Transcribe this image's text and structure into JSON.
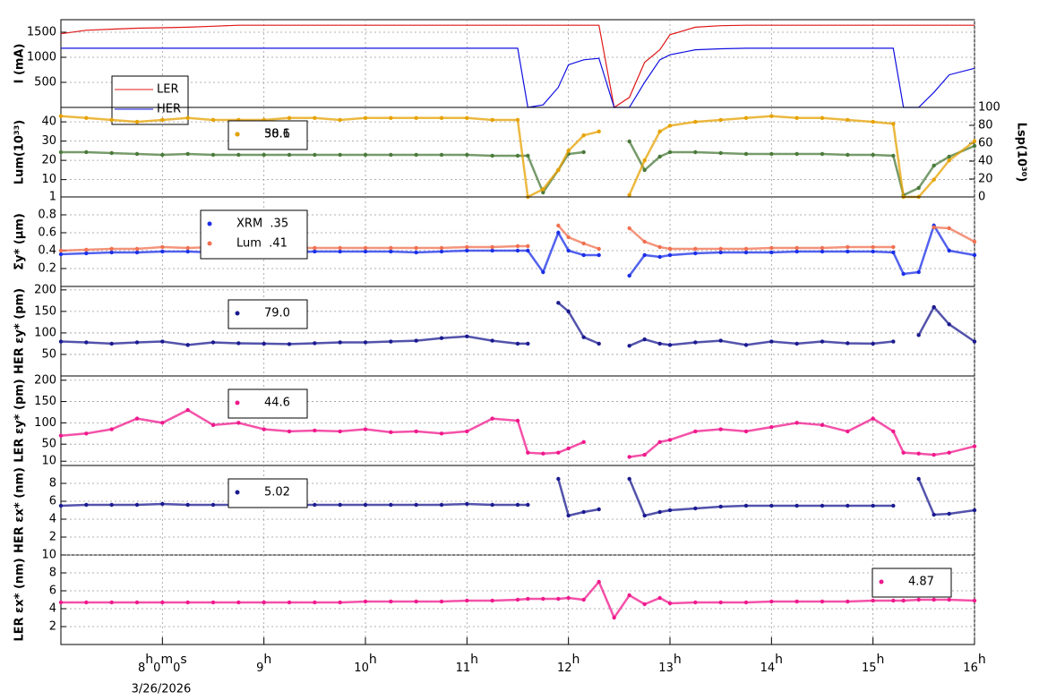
{
  "chart_data": [
    {
      "type": "line",
      "ylabel": "I (mA)",
      "ylim": [
        0,
        1750
      ],
      "yticks": [
        500,
        1000,
        1500
      ],
      "grid": true,
      "markers": false,
      "legend_loc": "lower left",
      "legend_stacked": true,
      "x": [
        7,
        7.25,
        7.5,
        7.75,
        8,
        8.25,
        8.5,
        8.75,
        9,
        9.25,
        9.5,
        9.75,
        10,
        10.25,
        10.5,
        10.75,
        11,
        11.25,
        11.5,
        11.6,
        11.75,
        11.9,
        12,
        12.15,
        12.3,
        12.45,
        12.6,
        12.75,
        12.9,
        13,
        13.25,
        13.5,
        13.75,
        14,
        14.25,
        14.5,
        14.75,
        15,
        15.2,
        15.3,
        15.45,
        15.6,
        15.75,
        16
      ],
      "series": [
        {
          "name": "LER",
          "color": "#e01818",
          "values": [
            1470,
            1540,
            1560,
            1580,
            1590,
            1600,
            1620,
            1640,
            1640,
            1640,
            1640,
            1640,
            1640,
            1640,
            1640,
            1640,
            1640,
            1640,
            1640,
            1640,
            1640,
            1640,
            1640,
            1640,
            1640,
            0,
            200,
            900,
            1150,
            1450,
            1600,
            1630,
            1640,
            1640,
            1640,
            1640,
            1640,
            1640,
            1640,
            1640,
            1640,
            1640,
            1640,
            1640
          ]
        },
        {
          "name": "HER",
          "color": "#1010e0",
          "values": [
            1180,
            1180,
            1180,
            1180,
            1180,
            1180,
            1180,
            1180,
            1180,
            1180,
            1180,
            1180,
            1180,
            1180,
            1180,
            1180,
            1180,
            1180,
            1180,
            0,
            50,
            400,
            850,
            950,
            980,
            0,
            0,
            500,
            950,
            1050,
            1150,
            1170,
            1180,
            1180,
            1180,
            1180,
            1180,
            1180,
            1180,
            0,
            0,
            300,
            650,
            780
          ]
        }
      ]
    },
    {
      "type": "line",
      "ylabel": "Lum(10³³)",
      "ylim": [
        1,
        47.5
      ],
      "yticks": [
        1,
        10,
        20,
        30,
        40
      ],
      "y2label": "Lsp(10³⁰)",
      "y2lim": [
        0,
        100
      ],
      "y2ticks": [
        0,
        20,
        40,
        60,
        80,
        100
      ],
      "grid": true,
      "markers": true,
      "legend_loc": "upper left",
      "legend_stacked": false,
      "x": [
        7,
        7.25,
        7.5,
        7.75,
        8,
        8.25,
        8.5,
        8.75,
        9,
        9.25,
        9.5,
        9.75,
        10,
        10.25,
        10.5,
        10.75,
        11,
        11.25,
        11.5,
        11.6,
        11.75,
        11.9,
        12,
        12.15,
        12.3,
        12.45,
        12.6,
        12.75,
        12.9,
        13,
        13.25,
        13.5,
        13.75,
        14,
        14.25,
        14.5,
        14.75,
        15,
        15.2,
        15.3,
        15.45,
        15.6,
        15.75,
        16
      ],
      "series": [
        {
          "name": "50.1",
          "color": "#4a7a3a",
          "axis": "y2",
          "values": [
            50,
            50,
            49,
            48,
            47,
            48,
            47,
            47,
            47,
            47,
            47,
            47,
            47,
            47,
            47,
            47,
            47,
            46,
            46,
            46,
            5,
            30,
            48,
            50,
            null,
            null,
            62,
            30,
            45,
            50,
            50,
            49,
            48,
            48,
            48,
            48,
            47,
            47,
            46,
            2,
            10,
            35,
            45,
            57
          ]
        },
        {
          "name": "38.6",
          "color": "#e6a200",
          "values": [
            43,
            42,
            41,
            40,
            41,
            42,
            41,
            41,
            41,
            42,
            42,
            41,
            42,
            42,
            42,
            42,
            42,
            41,
            41,
            1,
            5,
            15,
            25,
            33,
            35,
            null,
            2,
            20,
            35,
            38,
            40,
            41,
            42,
            43,
            42,
            42,
            41,
            40,
            39,
            1,
            1,
            10,
            20,
            30
          ]
        }
      ]
    },
    {
      "type": "line",
      "ylabel": "Σy* (μm)",
      "ylim": [
        0,
        1
      ],
      "yticks": [
        0.2,
        0.4,
        0.6,
        0.8
      ],
      "grid": true,
      "markers": true,
      "legend_loc": "upper left",
      "legend_stacked": true,
      "x": [
        7,
        7.25,
        7.5,
        7.75,
        8,
        8.25,
        8.5,
        8.75,
        9,
        9.25,
        9.5,
        9.75,
        10,
        10.25,
        10.5,
        10.75,
        11,
        11.25,
        11.5,
        11.6,
        11.75,
        11.9,
        12,
        12.15,
        12.3,
        12.45,
        12.6,
        12.75,
        12.9,
        13,
        13.25,
        13.5,
        13.75,
        14,
        14.25,
        14.5,
        14.75,
        15,
        15.2,
        15.3,
        15.45,
        15.6,
        15.75,
        16
      ],
      "series": [
        {
          "name": "XRM  .35",
          "color": "#1a2ee8",
          "values": [
            0.36,
            0.37,
            0.38,
            0.38,
            0.39,
            0.39,
            0.38,
            0.38,
            0.38,
            0.38,
            0.39,
            0.39,
            0.39,
            0.39,
            0.38,
            0.39,
            0.4,
            0.4,
            0.4,
            0.4,
            0.16,
            0.6,
            0.4,
            0.35,
            0.35,
            null,
            0.12,
            0.35,
            0.33,
            0.35,
            0.37,
            0.38,
            0.38,
            0.38,
            0.39,
            0.39,
            0.39,
            0.39,
            0.38,
            0.14,
            0.16,
            0.68,
            0.4,
            0.35
          ]
        },
        {
          "name": "Lum  .41",
          "color": "#f07050",
          "values": [
            0.4,
            0.41,
            0.42,
            0.42,
            0.44,
            0.43,
            0.44,
            0.43,
            0.43,
            0.43,
            0.43,
            0.43,
            0.43,
            0.43,
            0.43,
            0.43,
            0.44,
            0.44,
            0.45,
            0.45,
            null,
            0.68,
            0.55,
            0.48,
            0.42,
            null,
            0.65,
            0.5,
            0.44,
            0.42,
            0.42,
            0.42,
            0.42,
            0.43,
            0.43,
            0.43,
            0.44,
            0.44,
            0.44,
            null,
            null,
            0.66,
            0.65,
            0.5
          ]
        }
      ]
    },
    {
      "type": "line",
      "ylabel": "HER εy* (pm)",
      "ylim": [
        0,
        208
      ],
      "yticks": [
        50,
        100,
        150,
        200
      ],
      "grid": true,
      "markers": true,
      "legend_loc": "upper left",
      "legend_stacked": true,
      "x": [
        7,
        7.25,
        7.5,
        7.75,
        8,
        8.25,
        8.5,
        8.75,
        9,
        9.25,
        9.5,
        9.75,
        10,
        10.25,
        10.5,
        10.75,
        11,
        11.25,
        11.5,
        11.6,
        11.75,
        11.9,
        12,
        12.15,
        12.3,
        12.45,
        12.6,
        12.75,
        12.9,
        13,
        13.25,
        13.5,
        13.75,
        14,
        14.25,
        14.5,
        14.75,
        15,
        15.2,
        15.3,
        15.45,
        15.6,
        15.75,
        16
      ],
      "series": [
        {
          "name": "79.0",
          "color": "#1a1a90",
          "values": [
            80,
            78,
            75,
            78,
            80,
            72,
            78,
            76,
            75,
            74,
            76,
            78,
            78,
            80,
            82,
            88,
            92,
            82,
            75,
            75,
            null,
            170,
            150,
            90,
            75,
            null,
            70,
            85,
            75,
            72,
            78,
            82,
            72,
            80,
            75,
            80,
            76,
            75,
            80,
            null,
            95,
            160,
            120,
            80
          ]
        }
      ]
    },
    {
      "type": "line",
      "ylabel": "LER εy* (pm)",
      "ylim": [
        0,
        210
      ],
      "yticks": [
        10,
        50,
        100,
        150,
        200
      ],
      "grid": true,
      "markers": true,
      "legend_loc": "upper left",
      "legend_stacked": true,
      "x": [
        7,
        7.25,
        7.5,
        7.75,
        8,
        8.25,
        8.5,
        8.75,
        9,
        9.25,
        9.5,
        9.75,
        10,
        10.25,
        10.5,
        10.75,
        11,
        11.25,
        11.5,
        11.6,
        11.75,
        11.9,
        12,
        12.15,
        12.3,
        12.45,
        12.6,
        12.75,
        12.9,
        13,
        13.25,
        13.5,
        13.75,
        14,
        14.25,
        14.5,
        14.75,
        15,
        15.2,
        15.3,
        15.45,
        15.6,
        15.75,
        16
      ],
      "series": [
        {
          "name": "44.6",
          "color": "#f0188c",
          "values": [
            70,
            75,
            85,
            110,
            100,
            130,
            95,
            100,
            85,
            80,
            82,
            80,
            85,
            78,
            80,
            75,
            80,
            110,
            105,
            30,
            28,
            30,
            40,
            55,
            null,
            null,
            20,
            25,
            55,
            60,
            80,
            85,
            80,
            90,
            100,
            95,
            80,
            110,
            80,
            30,
            28,
            25,
            30,
            45
          ]
        }
      ]
    },
    {
      "type": "line",
      "ylabel": "HER εx* (nm)",
      "ylim": [
        0,
        10
      ],
      "yticks": [
        2,
        4,
        6,
        8
      ],
      "grid": true,
      "markers": true,
      "legend_loc": "upper left",
      "legend_stacked": true,
      "x": [
        7,
        7.25,
        7.5,
        7.75,
        8,
        8.25,
        8.5,
        8.75,
        9,
        9.25,
        9.5,
        9.75,
        10,
        10.25,
        10.5,
        10.75,
        11,
        11.25,
        11.5,
        11.6,
        11.75,
        11.9,
        12,
        12.15,
        12.3,
        12.45,
        12.6,
        12.75,
        12.9,
        13,
        13.25,
        13.5,
        13.75,
        14,
        14.25,
        14.5,
        14.75,
        15,
        15.2,
        15.3,
        15.45,
        15.6,
        15.75,
        16
      ],
      "series": [
        {
          "name": "5.02",
          "color": "#1a1a90",
          "values": [
            5.5,
            5.6,
            5.6,
            5.6,
            5.7,
            5.6,
            5.6,
            5.6,
            5.6,
            5.6,
            5.6,
            5.6,
            5.6,
            5.6,
            5.6,
            5.6,
            5.7,
            5.6,
            5.6,
            5.6,
            null,
            8.5,
            4.4,
            4.8,
            5.1,
            null,
            8.5,
            4.4,
            4.8,
            5.0,
            5.2,
            5.4,
            5.5,
            5.5,
            5.5,
            5.5,
            5.5,
            5.5,
            5.5,
            null,
            8.5,
            4.5,
            4.6,
            5.0
          ]
        }
      ]
    },
    {
      "type": "line",
      "ylabel": "LER εx* (nm)",
      "ylim": [
        0,
        10
      ],
      "yticks": [
        2,
        4,
        6,
        8,
        10
      ],
      "grid": true,
      "markers": true,
      "legend_loc": "upper right",
      "legend_stacked": true,
      "xlim": [
        7,
        16
      ],
      "xlabel": "3/26/2026",
      "xticks": [
        {
          "value": 8,
          "label": "8h0m0s"
        },
        {
          "value": 9,
          "label": "9h"
        },
        {
          "value": 10,
          "label": "10h"
        },
        {
          "value": 11,
          "label": "11h"
        },
        {
          "value": 12,
          "label": "12h"
        },
        {
          "value": 13,
          "label": "13h"
        },
        {
          "value": 14,
          "label": "14h"
        },
        {
          "value": 15,
          "label": "15h"
        },
        {
          "value": 16,
          "label": "16h"
        }
      ],
      "x": [
        7,
        7.25,
        7.5,
        7.75,
        8,
        8.25,
        8.5,
        8.75,
        9,
        9.25,
        9.5,
        9.75,
        10,
        10.25,
        10.5,
        10.75,
        11,
        11.25,
        11.5,
        11.6,
        11.75,
        11.9,
        12,
        12.15,
        12.3,
        12.45,
        12.6,
        12.75,
        12.9,
        13,
        13.25,
        13.5,
        13.75,
        14,
        14.25,
        14.5,
        14.75,
        15,
        15.2,
        15.3,
        15.45,
        15.6,
        15.75,
        16
      ],
      "series": [
        {
          "name": "4.87",
          "color": "#f0188c",
          "values": [
            4.7,
            4.7,
            4.7,
            4.7,
            4.7,
            4.7,
            4.7,
            4.7,
            4.7,
            4.7,
            4.7,
            4.7,
            4.8,
            4.8,
            4.8,
            4.8,
            4.9,
            4.9,
            5.0,
            5.1,
            5.1,
            5.1,
            5.2,
            5.0,
            7.0,
            3.0,
            5.5,
            4.5,
            5.2,
            4.6,
            4.7,
            4.7,
            4.7,
            4.8,
            4.8,
            4.8,
            4.8,
            4.9,
            4.9,
            4.9,
            5.0,
            5.0,
            5.0,
            4.9
          ]
        }
      ]
    }
  ]
}
